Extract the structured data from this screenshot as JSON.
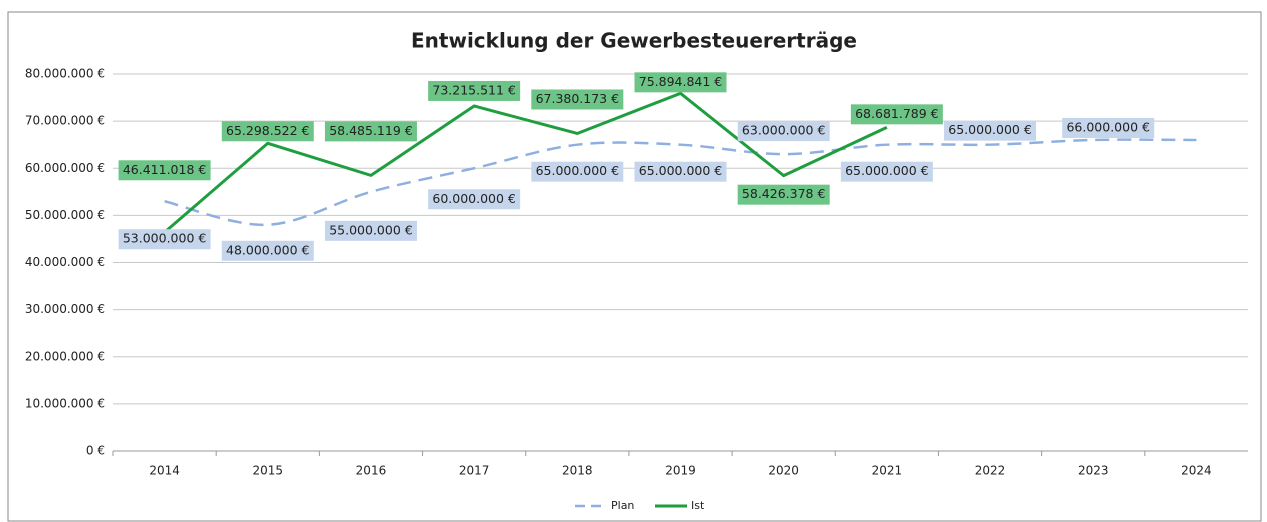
{
  "chart_data": {
    "type": "line",
    "title": "Entwicklung der Gewerbesteuererträge",
    "categories": [
      "2014",
      "2015",
      "2016",
      "2017",
      "2018",
      "2019",
      "2020",
      "2021",
      "2022",
      "2023",
      "2024"
    ],
    "series": [
      {
        "name": "Plan",
        "color": "#8eb0e0",
        "label_color": "#c5d5ec",
        "dashed": true,
        "smooth": true,
        "values": [
          53000000,
          48000000,
          55000000,
          60000000,
          65000000,
          65000000,
          63000000,
          65000000,
          65000000,
          66000000,
          66000000
        ],
        "value_labels": [
          "53.000.000 €",
          "48.000.000 €",
          "55.000.000 €",
          "60.000.000 €",
          "65.000.000 €",
          "65.000.000 €",
          "63.000.000 €",
          "65.000.000 €",
          "65.000.000 €",
          "66.000.000 €",
          null
        ]
      },
      {
        "name": "Ist",
        "color": "#1e9e3e",
        "label_color": "#6cc486",
        "dashed": false,
        "smooth": false,
        "values": [
          46411018,
          65298522,
          58485119,
          73215511,
          67380173,
          75894841,
          58426378,
          68681789,
          null,
          null,
          null
        ],
        "value_labels": [
          "46.411.018 €",
          "65.298.522 €",
          "58.485.119 €",
          "73.215.511 €",
          "67.380.173 €",
          "75.894.841 €",
          "58.426.378 €",
          "68.681.789 €",
          null,
          null,
          null
        ]
      }
    ],
    "ylim": [
      0,
      80000000
    ],
    "yticks": [
      {
        "value": 0,
        "label": "0 €"
      },
      {
        "value": 10000000,
        "label": "10.000.000 €"
      },
      {
        "value": 20000000,
        "label": "20.000.000 €"
      },
      {
        "value": 30000000,
        "label": "30.000.000 €"
      },
      {
        "value": 40000000,
        "label": "40.000.000 €"
      },
      {
        "value": 50000000,
        "label": "50.000.000 €"
      },
      {
        "value": 60000000,
        "label": "60.000.000 €"
      },
      {
        "value": 70000000,
        "label": "70.000.000 €"
      },
      {
        "value": 80000000,
        "label": "80.000.000 €"
      }
    ],
    "grid": true,
    "legend": "bottom"
  }
}
